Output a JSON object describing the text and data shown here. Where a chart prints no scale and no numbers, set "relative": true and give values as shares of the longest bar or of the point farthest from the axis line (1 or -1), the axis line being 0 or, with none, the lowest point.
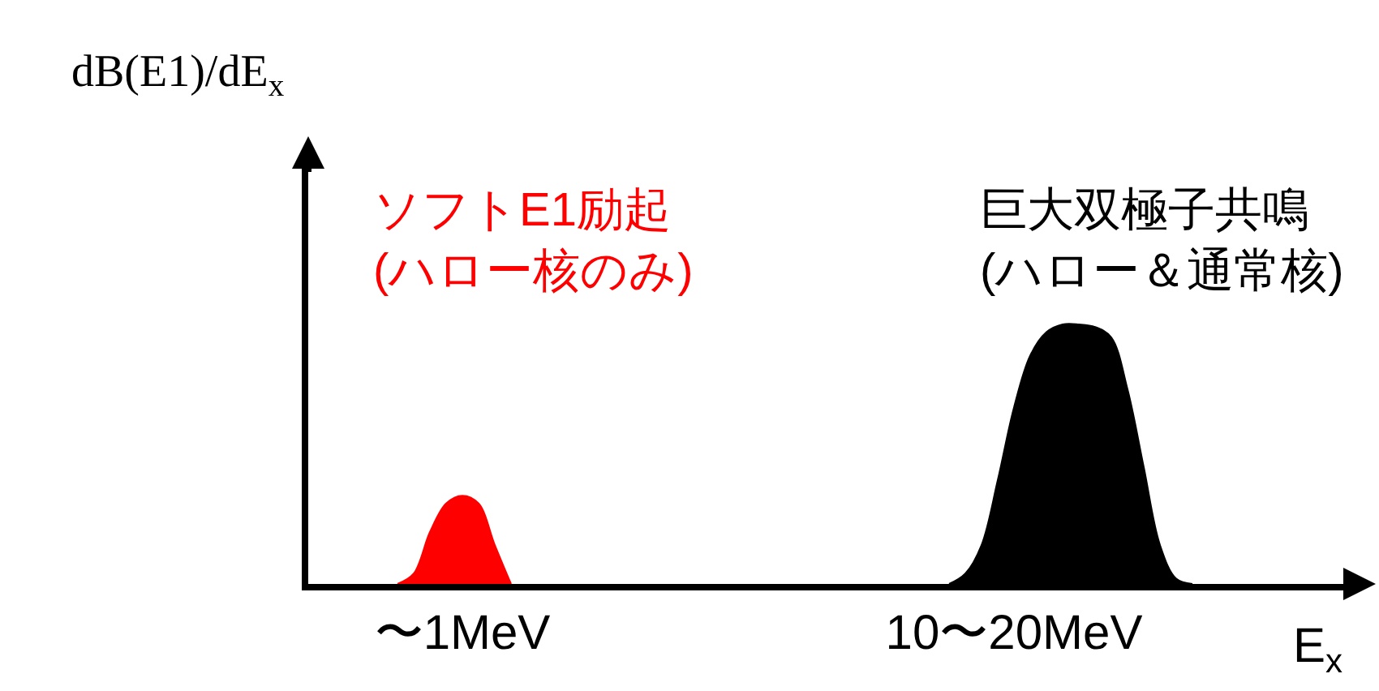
{
  "chart_data": {
    "type": "area",
    "relative": true,
    "ylabel": "dB(E1)/dE$_{x}$",
    "xlabel": "E$_{x}$",
    "legend": false,
    "categories": [
      null,
      null,
      null,
      null,
      null,
      null,
      null,
      null,
      null,
      "〜1MeV",
      null,
      null,
      null,
      null,
      null,
      null,
      null,
      null,
      null,
      null,
      null,
      null,
      null,
      null,
      null,
      null,
      null,
      null,
      null,
      null,
      null,
      null,
      null,
      null,
      null,
      null,
      null,
      null,
      null,
      null,
      null,
      null,
      null,
      "10〜20MeV",
      null,
      null,
      null,
      null,
      null,
      null,
      null,
      null,
      null,
      null,
      null,
      null,
      null,
      null,
      null,
      null,
      null,
      null,
      null,
      null
    ],
    "series": [
      {
        "name": "ソフトE1励起\n(ハロー核のみ)",
        "color": "#ff0000",
        "values": [
          null,
          null,
          null,
          null,
          null,
          0,
          0.04,
          0.2,
          0.31,
          0.34,
          0.31,
          0.15,
          0,
          null,
          null,
          null,
          null,
          null,
          null,
          null,
          null,
          null,
          null,
          null,
          null,
          null,
          null,
          null,
          null,
          null,
          null,
          null,
          null,
          null,
          null,
          null,
          null,
          null,
          null,
          null,
          null,
          null,
          null,
          null,
          null,
          null,
          null,
          null,
          null,
          null,
          null,
          null,
          null,
          null,
          null,
          null,
          null,
          null,
          null,
          null,
          null,
          null,
          null,
          null
        ]
      },
      {
        "name": "巨大双極子共鳴\n(ハロー＆通常核)",
        "color": "#000000",
        "values": [
          null,
          null,
          null,
          null,
          null,
          null,
          null,
          null,
          null,
          null,
          null,
          null,
          null,
          null,
          null,
          null,
          null,
          null,
          null,
          null,
          null,
          null,
          null,
          null,
          null,
          null,
          null,
          null,
          null,
          null,
          null,
          null,
          null,
          null,
          null,
          null,
          null,
          null,
          null,
          0,
          0.04,
          0.15,
          0.4,
          0.68,
          0.88,
          0.97,
          1,
          1,
          0.99,
          0.95,
          0.75,
          0.45,
          0.15,
          0.02,
          0,
          null,
          null,
          null,
          null,
          null,
          null,
          null,
          null,
          null
        ]
      }
    ]
  }
}
